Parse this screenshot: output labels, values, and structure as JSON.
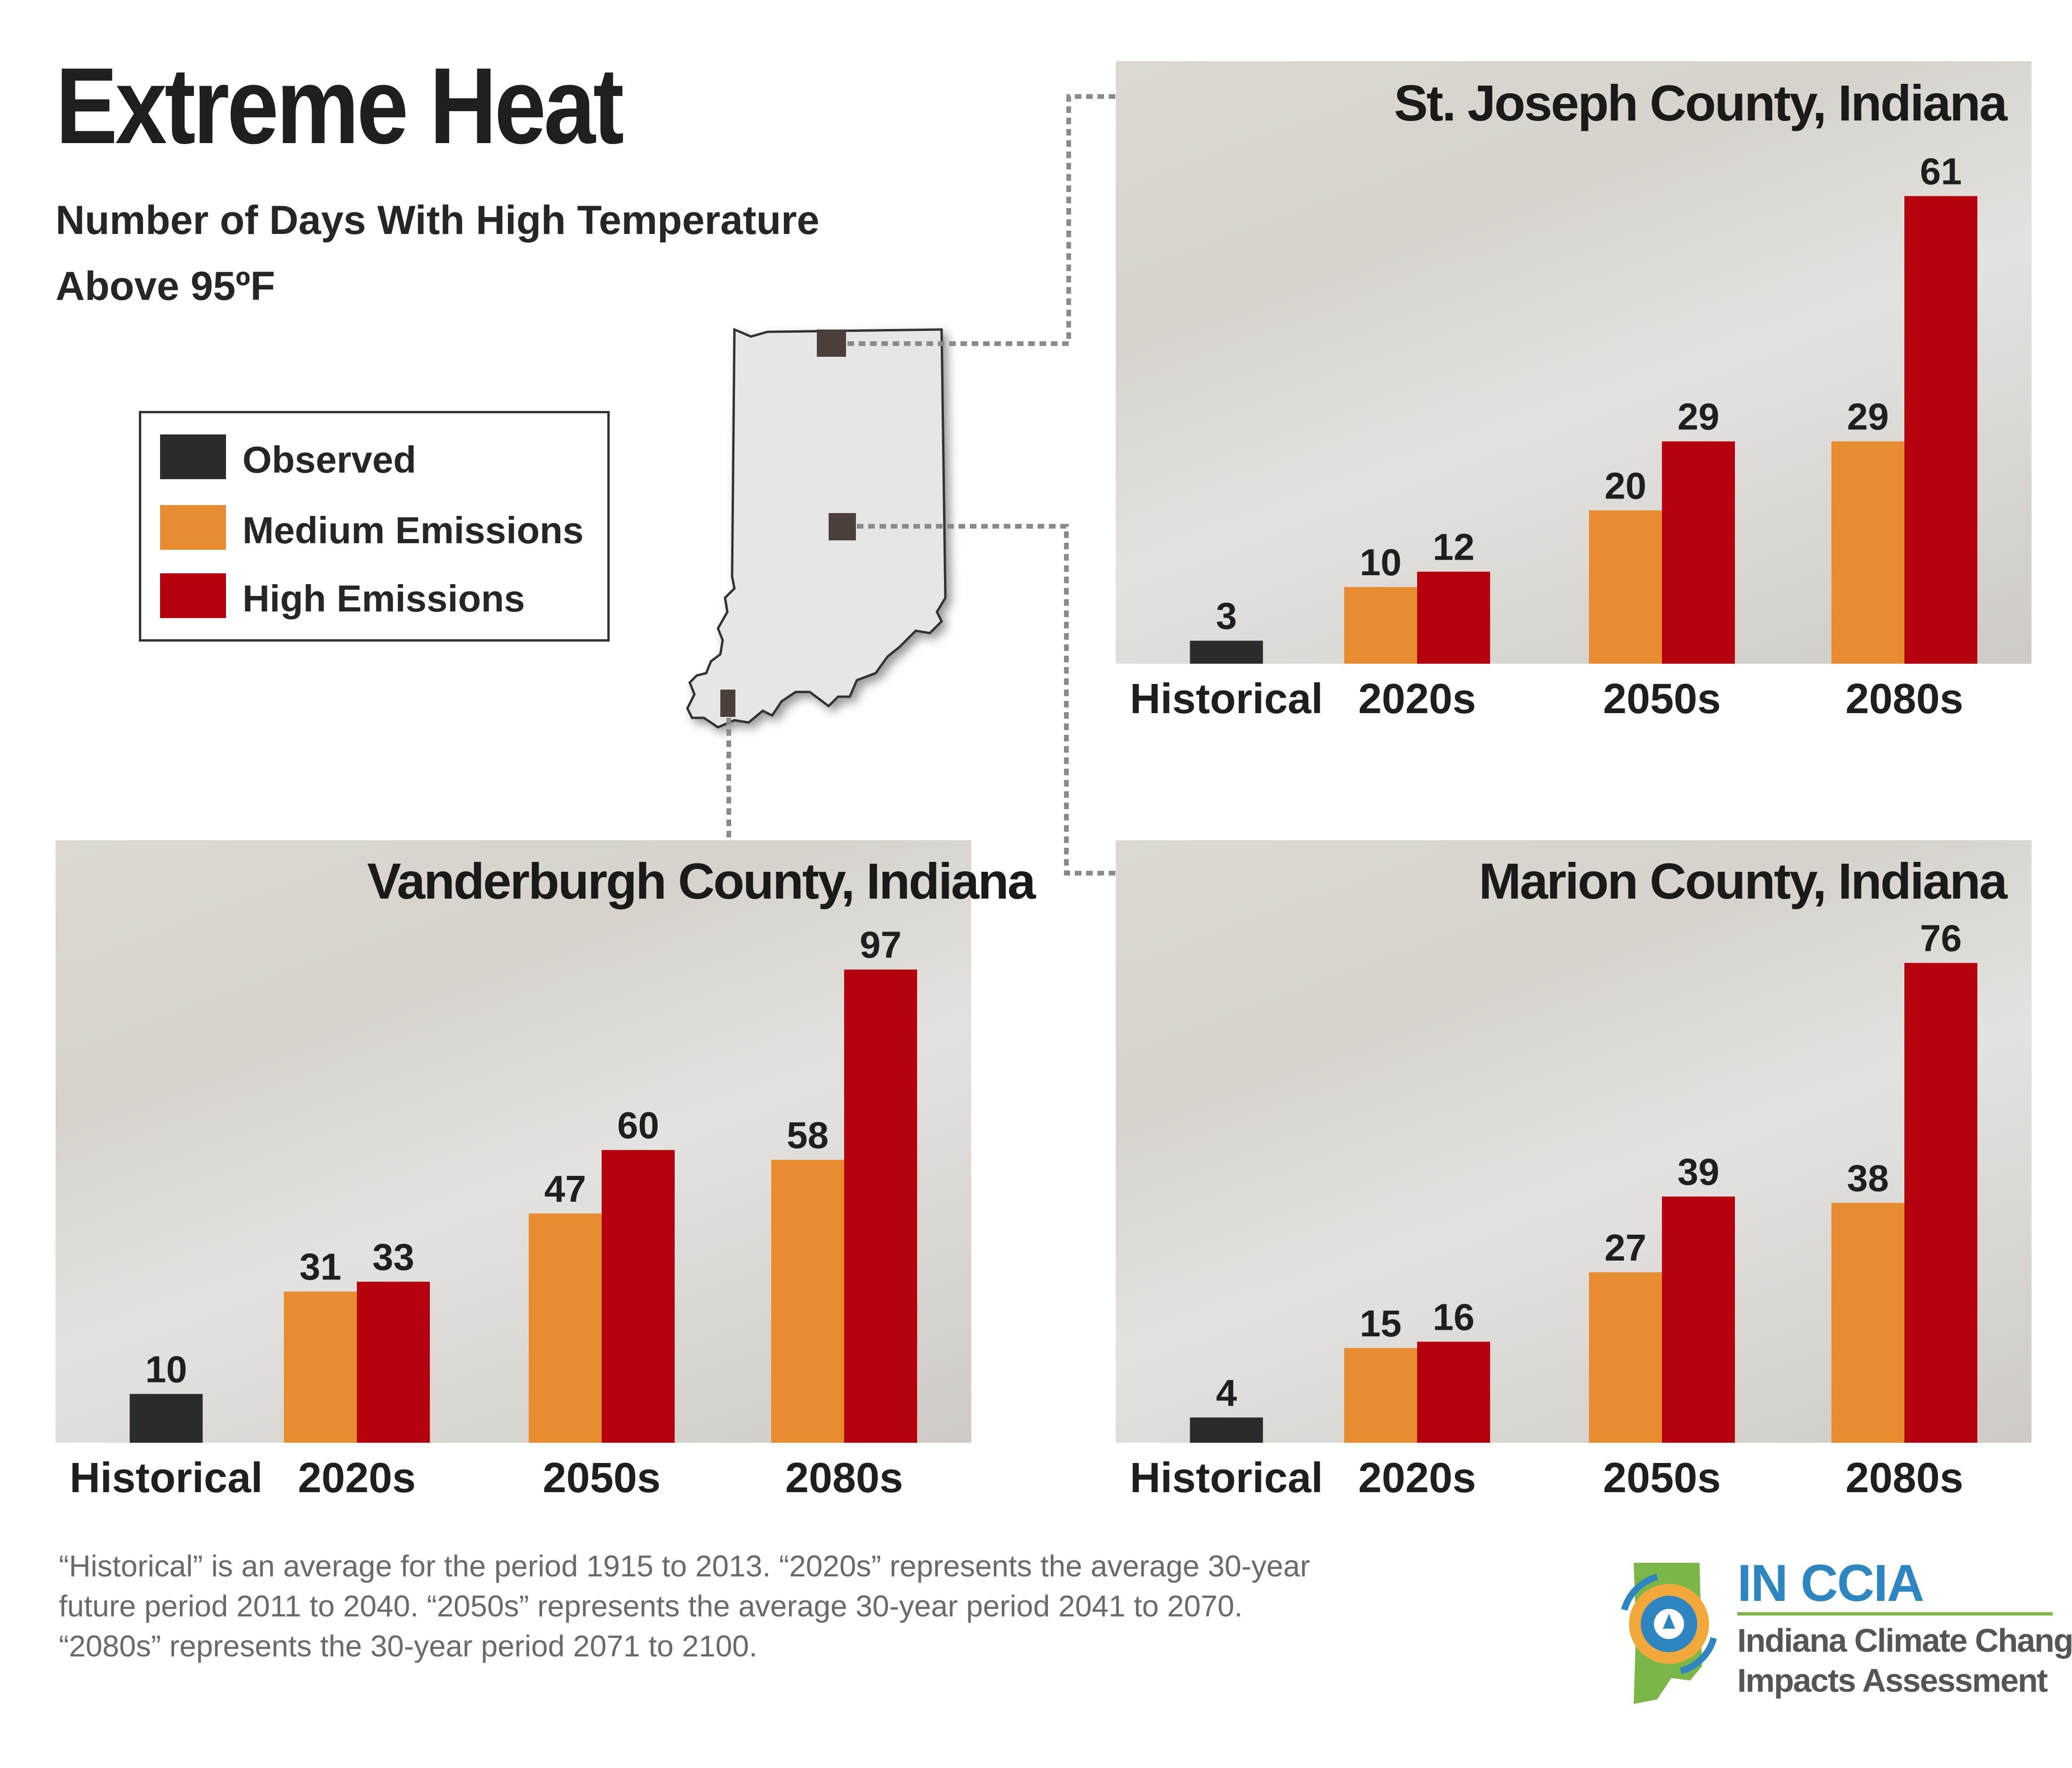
{
  "title": "Extreme Heat",
  "subtitle_line1": "Number of Days With High Temperature",
  "subtitle_line2": "Above 95ºF",
  "legend": [
    {
      "label": "Observed",
      "color": "#2b2b2b"
    },
    {
      "label": "Medium Emissions",
      "color": "#e78c30"
    },
    {
      "label": "High Emissions",
      "color": "#b5000e"
    }
  ],
  "colors": {
    "observed": "#2b2b2b",
    "medium": "#e78c30",
    "high": "#b5000e"
  },
  "chart_data": [
    {
      "type": "bar",
      "title": "St. Joseph County, Indiana",
      "categories": [
        "Historical",
        "2020s",
        "2050s",
        "2080s"
      ],
      "series": [
        {
          "name": "Observed",
          "values": [
            3,
            null,
            null,
            null
          ]
        },
        {
          "name": "Medium Emissions",
          "values": [
            null,
            10,
            20,
            29
          ]
        },
        {
          "name": "High Emissions",
          "values": [
            null,
            12,
            29,
            61
          ]
        }
      ],
      "ylim": [
        0,
        70
      ]
    },
    {
      "type": "bar",
      "title": "Vanderburgh County, Indiana",
      "categories": [
        "Historical",
        "2020s",
        "2050s",
        "2080s"
      ],
      "series": [
        {
          "name": "Observed",
          "values": [
            10,
            null,
            null,
            null
          ]
        },
        {
          "name": "Medium Emissions",
          "values": [
            null,
            31,
            47,
            58
          ]
        },
        {
          "name": "High Emissions",
          "values": [
            null,
            33,
            60,
            97
          ]
        }
      ],
      "ylim": [
        0,
        110
      ]
    },
    {
      "type": "bar",
      "title": "Marion County, Indiana",
      "categories": [
        "Historical",
        "2020s",
        "2050s",
        "2080s"
      ],
      "series": [
        {
          "name": "Observed",
          "values": [
            4,
            null,
            null,
            null
          ]
        },
        {
          "name": "Medium Emissions",
          "values": [
            null,
            15,
            27,
            38
          ]
        },
        {
          "name": "High Emissions",
          "values": [
            null,
            16,
            39,
            76
          ]
        }
      ],
      "ylim": [
        0,
        85
      ]
    }
  ],
  "footnote": [
    "“Historical” is an average for the period 1915 to 2013. “2020s” represents the average 30-year",
    "future period 2011 to 2040. “2050s” represents the average 30-year period 2041 to 2070.",
    "“2080s” represents the 30-year period 2071 to 2100."
  ],
  "logo": {
    "title": "IN CCIA",
    "line1": "Indiana Climate Change",
    "line2": "Impacts Assessment"
  }
}
